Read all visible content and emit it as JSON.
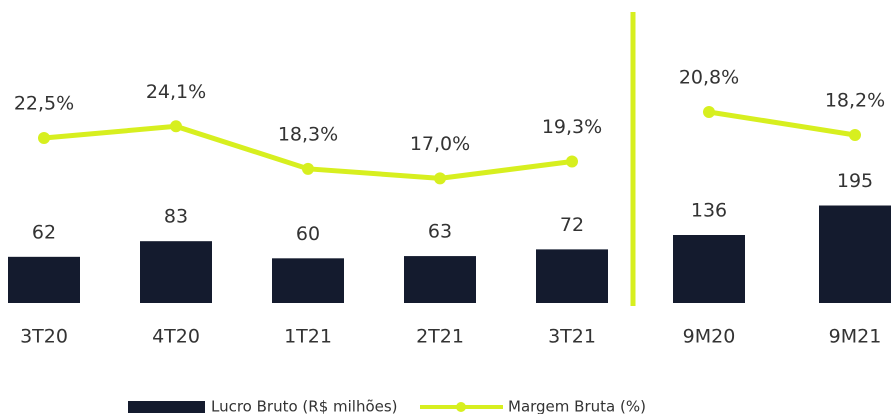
{
  "chart_data": [
    {
      "type": "combo",
      "categories": [
        "3T20",
        "4T20",
        "1T21",
        "2T21",
        "3T21"
      ],
      "ylim": [
        0,
        380
      ],
      "y2lim": [
        0,
        38.6
      ],
      "series": [
        {
          "name": "Lucro Bruto (R$ milhões)",
          "type": "bar",
          "color": "#141b2e",
          "values": [
            62,
            83,
            60,
            63,
            72
          ]
        },
        {
          "name": "Margem Bruta (%)",
          "type": "line",
          "axis": "y2",
          "color": "#d7ef1f",
          "values": [
            22.5,
            24.1,
            18.3,
            17.0,
            19.3
          ],
          "value_labels": [
            "22,5%",
            "24,1%",
            "18,3%",
            "17,0%",
            "19,3%"
          ]
        }
      ]
    },
    {
      "type": "combo",
      "categories": [
        "9M20",
        "9M21"
      ],
      "ylim": [
        0,
        566
      ],
      "y2lim": [
        -0.8,
        31.2
      ],
      "series": [
        {
          "type": "bar",
          "color": "#141b2e",
          "values": [
            136,
            195
          ]
        },
        {
          "type": "line",
          "axis": "y2",
          "color": "#d7ef1f",
          "values": [
            20.8,
            18.2
          ],
          "value_labels": [
            "20,8%",
            "18,2%"
          ]
        }
      ]
    }
  ]
}
